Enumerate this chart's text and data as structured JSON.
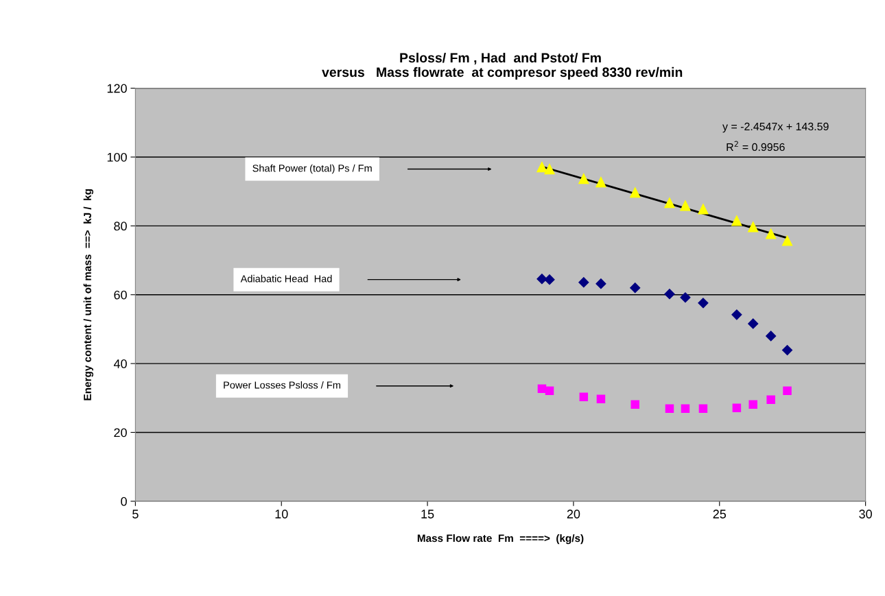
{
  "chart_data": {
    "type": "scatter",
    "title": "Psloss/ Fm , Had  and Pstot/ Fm\n versus   Mass flowrate  at compresor speed 8330 rev/min",
    "xlabel": "Mass Flow rate  Fm  ====>  (kg/s)",
    "ylabel": "Energy content / unit of mass  ==>  kJ /  kg",
    "xlim": [
      5,
      30
    ],
    "xticks": [
      5,
      10,
      15,
      20,
      25,
      30
    ],
    "ylim": [
      0,
      120
    ],
    "yticks": [
      0,
      20,
      40,
      60,
      80,
      100,
      120
    ],
    "grid": "y",
    "legend": false,
    "series": [
      {
        "marker": "triangle",
        "color": "#ffff00",
        "x": [
          18.92,
          19.18,
          20.35,
          20.94,
          22.11,
          23.29,
          23.83,
          24.44,
          25.59,
          26.15,
          26.76,
          27.32
        ],
        "values": [
          97.1,
          96.5,
          93.7,
          92.7,
          89.7,
          86.7,
          85.9,
          84.9,
          81.5,
          79.7,
          77.7,
          75.7
        ]
      },
      {
        "marker": "diamond",
        "color": "#000080",
        "x": [
          18.92,
          19.18,
          20.35,
          20.94,
          22.11,
          23.29,
          23.83,
          24.44,
          25.59,
          26.15,
          26.76,
          27.32
        ],
        "values": [
          64.6,
          64.4,
          63.6,
          63.2,
          62.0,
          60.2,
          59.2,
          57.6,
          54.2,
          51.6,
          48.0,
          43.9
        ]
      },
      {
        "marker": "square",
        "color": "#ff00ff",
        "x": [
          18.92,
          19.18,
          20.35,
          20.94,
          22.11,
          23.29,
          23.83,
          24.44,
          25.59,
          26.15,
          26.76,
          27.32
        ],
        "values": [
          32.7,
          32.1,
          30.3,
          29.7,
          28.1,
          26.9,
          26.9,
          26.9,
          27.1,
          28.1,
          29.5,
          32.1
        ]
      },
      {
        "type": "line",
        "marker": "none",
        "line_style": "solid",
        "color": "#000000",
        "x": [
          18.92,
          27.32
        ],
        "values": [
          97.2,
          76.5
        ]
      }
    ],
    "annotations": [
      "Shaft Power (total) Ps / Fm",
      "Adiabatic Head  Had",
      "Power Losses Psloss / Fm",
      "y = -2.4547x + 143.59",
      "R$^{2}$ = 0.9956"
    ]
  }
}
